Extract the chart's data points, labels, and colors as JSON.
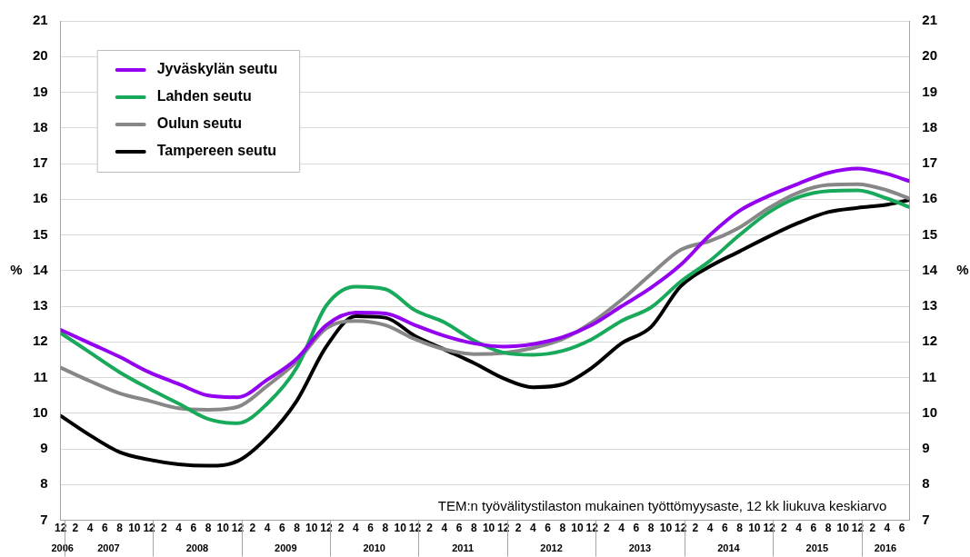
{
  "chart_data": {
    "type": "line",
    "ylabel": "%",
    "y2label": "%",
    "x": [
      "2006-12",
      "2007-04",
      "2007-08",
      "2007-12",
      "2008-04",
      "2008-08",
      "2008-12",
      "2009-04",
      "2009-08",
      "2009-12",
      "2010-04",
      "2010-08",
      "2010-12",
      "2011-04",
      "2011-08",
      "2011-12",
      "2012-04",
      "2012-08",
      "2012-12",
      "2013-04",
      "2013-08",
      "2013-12",
      "2014-04",
      "2014-08",
      "2014-12",
      "2015-04",
      "2015-08",
      "2015-12",
      "2016-04",
      "2016-07"
    ],
    "series": [
      {
        "name": "Jyväskylän seutu",
        "color": "#9400f0",
        "values": [
          12.34,
          11.96,
          11.58,
          11.15,
          10.82,
          10.5,
          10.45,
          10.94,
          11.53,
          12.47,
          12.82,
          12.8,
          12.47,
          12.17,
          11.96,
          11.87,
          11.94,
          12.13,
          12.48,
          13.0,
          13.52,
          14.16,
          15.0,
          15.68,
          16.1,
          16.44,
          16.74,
          16.86,
          16.71,
          16.51
        ]
      },
      {
        "name": "Lahden seutu",
        "color": "#19a95a",
        "values": [
          12.25,
          11.7,
          11.15,
          10.69,
          10.27,
          9.84,
          9.72,
          10.27,
          11.28,
          13.02,
          13.55,
          13.48,
          12.89,
          12.55,
          12.04,
          11.7,
          11.64,
          11.75,
          12.08,
          12.59,
          12.97,
          13.69,
          14.28,
          15.0,
          15.64,
          16.06,
          16.23,
          16.25,
          16.02,
          15.78
        ]
      },
      {
        "name": "Oulun seutu",
        "color": "#878787",
        "values": [
          11.28,
          10.9,
          10.56,
          10.35,
          10.14,
          10.1,
          10.18,
          10.77,
          11.45,
          12.38,
          12.59,
          12.47,
          12.08,
          11.79,
          11.66,
          11.69,
          11.83,
          12.08,
          12.55,
          13.18,
          13.9,
          14.58,
          14.83,
          15.21,
          15.76,
          16.19,
          16.4,
          16.42,
          16.25,
          16.02
        ]
      },
      {
        "name": "Tampereen seutu",
        "color": "#000000",
        "values": [
          9.93,
          9.38,
          8.91,
          8.7,
          8.57,
          8.53,
          8.66,
          9.33,
          10.35,
          11.87,
          12.72,
          12.68,
          12.17,
          11.79,
          11.41,
          10.98,
          10.73,
          10.81,
          11.28,
          11.96,
          12.42,
          13.56,
          14.12,
          14.54,
          14.96,
          15.34,
          15.64,
          15.76,
          15.85,
          15.98
        ]
      }
    ],
    "xlim": [
      "2006-12",
      "2016-07"
    ],
    "xticks": [
      {
        "value": "2006-12",
        "label": "12"
      },
      {
        "value": "2007-02",
        "label": "2"
      },
      {
        "value": "2007-04",
        "label": "4"
      },
      {
        "value": "2007-06",
        "label": "6"
      },
      {
        "value": "2007-08",
        "label": "8"
      },
      {
        "value": "2007-10",
        "label": "10"
      },
      {
        "value": "2007-12",
        "label": "12"
      },
      {
        "value": "2008-02",
        "label": "2"
      },
      {
        "value": "2008-04",
        "label": "4"
      },
      {
        "value": "2008-06",
        "label": "6"
      },
      {
        "value": "2008-08",
        "label": "8"
      },
      {
        "value": "2008-10",
        "label": "10"
      },
      {
        "value": "2008-12",
        "label": "12"
      },
      {
        "value": "2009-02",
        "label": "2"
      },
      {
        "value": "2009-04",
        "label": "4"
      },
      {
        "value": "2009-06",
        "label": "6"
      },
      {
        "value": "2009-08",
        "label": "8"
      },
      {
        "value": "2009-10",
        "label": "10"
      },
      {
        "value": "2009-12",
        "label": "12"
      },
      {
        "value": "2010-02",
        "label": "2"
      },
      {
        "value": "2010-04",
        "label": "4"
      },
      {
        "value": "2010-06",
        "label": "6"
      },
      {
        "value": "2010-08",
        "label": "8"
      },
      {
        "value": "2010-10",
        "label": "10"
      },
      {
        "value": "2010-12",
        "label": "12"
      },
      {
        "value": "2011-02",
        "label": "2"
      },
      {
        "value": "2011-04",
        "label": "4"
      },
      {
        "value": "2011-06",
        "label": "6"
      },
      {
        "value": "2011-08",
        "label": "8"
      },
      {
        "value": "2011-10",
        "label": "10"
      },
      {
        "value": "2011-12",
        "label": "12"
      },
      {
        "value": "2012-02",
        "label": "2"
      },
      {
        "value": "2012-04",
        "label": "4"
      },
      {
        "value": "2012-06",
        "label": "6"
      },
      {
        "value": "2012-08",
        "label": "8"
      },
      {
        "value": "2012-10",
        "label": "10"
      },
      {
        "value": "2012-12",
        "label": "12"
      },
      {
        "value": "2013-02",
        "label": "2"
      },
      {
        "value": "2013-04",
        "label": "4"
      },
      {
        "value": "2013-06",
        "label": "6"
      },
      {
        "value": "2013-08",
        "label": "8"
      },
      {
        "value": "2013-10",
        "label": "10"
      },
      {
        "value": "2013-12",
        "label": "12"
      },
      {
        "value": "2014-02",
        "label": "2"
      },
      {
        "value": "2014-04",
        "label": "4"
      },
      {
        "value": "2014-06",
        "label": "6"
      },
      {
        "value": "2014-08",
        "label": "8"
      },
      {
        "value": "2014-10",
        "label": "10"
      },
      {
        "value": "2014-12",
        "label": "12"
      },
      {
        "value": "2015-02",
        "label": "2"
      },
      {
        "value": "2015-04",
        "label": "4"
      },
      {
        "value": "2015-06",
        "label": "6"
      },
      {
        "value": "2015-08",
        "label": "8"
      },
      {
        "value": "2015-10",
        "label": "10"
      },
      {
        "value": "2015-12",
        "label": "12"
      },
      {
        "value": "2016-02",
        "label": "2"
      },
      {
        "value": "2016-04",
        "label": "4"
      },
      {
        "value": "2016-06",
        "label": "6"
      }
    ],
    "ylim": [
      7,
      21
    ],
    "yticks": [
      7,
      8,
      9,
      10,
      11,
      12,
      13,
      14,
      15,
      16,
      17,
      18,
      19,
      20,
      21
    ],
    "y2lim": [
      7,
      21
    ],
    "y2ticks": [
      7,
      8,
      9,
      10,
      11,
      12,
      13,
      14,
      15,
      16,
      17,
      18,
      19,
      20,
      21
    ],
    "grid": "y",
    "legend": "top left",
    "marker": "none",
    "line_style": "solid",
    "annotations": [
      "TEM:n työvälitystilaston mukainen työttömyysaste, 12 kk liukuva keskiarvo",
      "2006",
      "2007",
      "2008",
      "2009",
      "2010",
      "2011",
      "2012",
      "2013",
      "2014",
      "2015",
      "2016"
    ]
  }
}
